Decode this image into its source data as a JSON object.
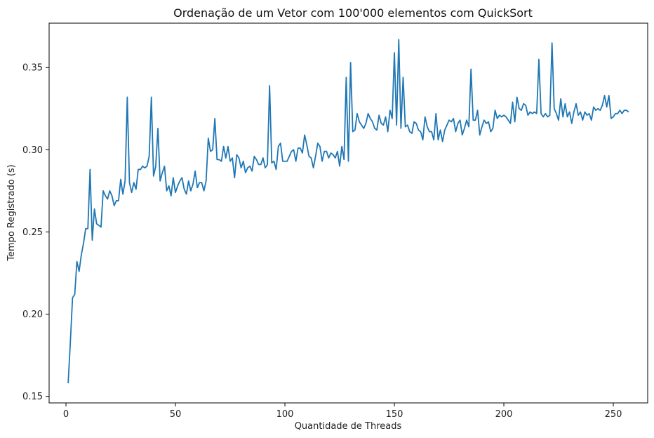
{
  "chart_data": {
    "type": "line",
    "title": "Ordenação de um Vetor com 100'000 elementos com QuickSort",
    "xlabel": "Quantidade de Threads",
    "ylabel": "Tempo Registrado (s)",
    "xlim": [
      -7.7,
      265.7
    ],
    "ylim": [
      0.146,
      0.377
    ],
    "xticks": [
      0,
      50,
      100,
      150,
      200,
      250
    ],
    "yticks": [
      0.15,
      0.2,
      0.25,
      0.3,
      0.35
    ],
    "ytick_labels": [
      "0.15",
      "0.20",
      "0.25",
      "0.30",
      "0.35"
    ],
    "grid": false,
    "line_color": "#1f77b4",
    "x_start": 1,
    "series": [
      {
        "values": [
          0.158,
          0.183,
          0.21,
          0.212,
          0.232,
          0.226,
          0.236,
          0.243,
          0.252,
          0.252,
          0.288,
          0.245,
          0.264,
          0.255,
          0.254,
          0.253,
          0.275,
          0.272,
          0.27,
          0.275,
          0.272,
          0.266,
          0.269,
          0.269,
          0.282,
          0.273,
          0.281,
          0.332,
          0.28,
          0.274,
          0.28,
          0.276,
          0.288,
          0.288,
          0.29,
          0.289,
          0.29,
          0.296,
          0.332,
          0.284,
          0.29,
          0.313,
          0.281,
          0.286,
          0.29,
          0.275,
          0.278,
          0.272,
          0.283,
          0.274,
          0.278,
          0.281,
          0.283,
          0.276,
          0.273,
          0.281,
          0.275,
          0.279,
          0.287,
          0.277,
          0.28,
          0.28,
          0.275,
          0.281,
          0.307,
          0.299,
          0.3,
          0.319,
          0.294,
          0.294,
          0.293,
          0.302,
          0.295,
          0.302,
          0.293,
          0.295,
          0.283,
          0.297,
          0.295,
          0.289,
          0.293,
          0.286,
          0.289,
          0.29,
          0.287,
          0.296,
          0.294,
          0.291,
          0.291,
          0.295,
          0.289,
          0.291,
          0.339,
          0.292,
          0.293,
          0.288,
          0.302,
          0.304,
          0.293,
          0.293,
          0.293,
          0.296,
          0.299,
          0.3,
          0.293,
          0.301,
          0.301,
          0.298,
          0.309,
          0.303,
          0.296,
          0.295,
          0.289,
          0.296,
          0.304,
          0.302,
          0.293,
          0.299,
          0.299,
          0.295,
          0.298,
          0.297,
          0.295,
          0.299,
          0.29,
          0.302,
          0.294,
          0.344,
          0.293,
          0.353,
          0.311,
          0.312,
          0.322,
          0.317,
          0.315,
          0.313,
          0.316,
          0.322,
          0.319,
          0.317,
          0.313,
          0.312,
          0.321,
          0.316,
          0.315,
          0.32,
          0.311,
          0.324,
          0.319,
          0.359,
          0.315,
          0.367,
          0.313,
          0.344,
          0.314,
          0.315,
          0.311,
          0.31,
          0.317,
          0.316,
          0.312,
          0.311,
          0.306,
          0.32,
          0.314,
          0.311,
          0.311,
          0.306,
          0.322,
          0.306,
          0.312,
          0.305,
          0.312,
          0.315,
          0.318,
          0.317,
          0.319,
          0.311,
          0.316,
          0.318,
          0.309,
          0.313,
          0.318,
          0.314,
          0.349,
          0.318,
          0.318,
          0.324,
          0.309,
          0.314,
          0.318,
          0.316,
          0.317,
          0.311,
          0.313,
          0.324,
          0.319,
          0.321,
          0.32,
          0.321,
          0.32,
          0.318,
          0.316,
          0.329,
          0.317,
          0.332,
          0.325,
          0.324,
          0.328,
          0.327,
          0.321,
          0.323,
          0.322,
          0.323,
          0.322,
          0.355,
          0.322,
          0.32,
          0.322,
          0.32,
          0.321,
          0.365,
          0.325,
          0.322,
          0.318,
          0.331,
          0.32,
          0.328,
          0.32,
          0.323,
          0.316,
          0.323,
          0.328,
          0.321,
          0.323,
          0.318,
          0.323,
          0.321,
          0.322,
          0.318,
          0.326,
          0.324,
          0.325,
          0.324,
          0.327,
          0.333,
          0.326,
          0.333,
          0.319,
          0.32,
          0.322,
          0.322,
          0.324,
          0.322,
          0.324,
          0.324,
          0.323
        ]
      }
    ]
  }
}
